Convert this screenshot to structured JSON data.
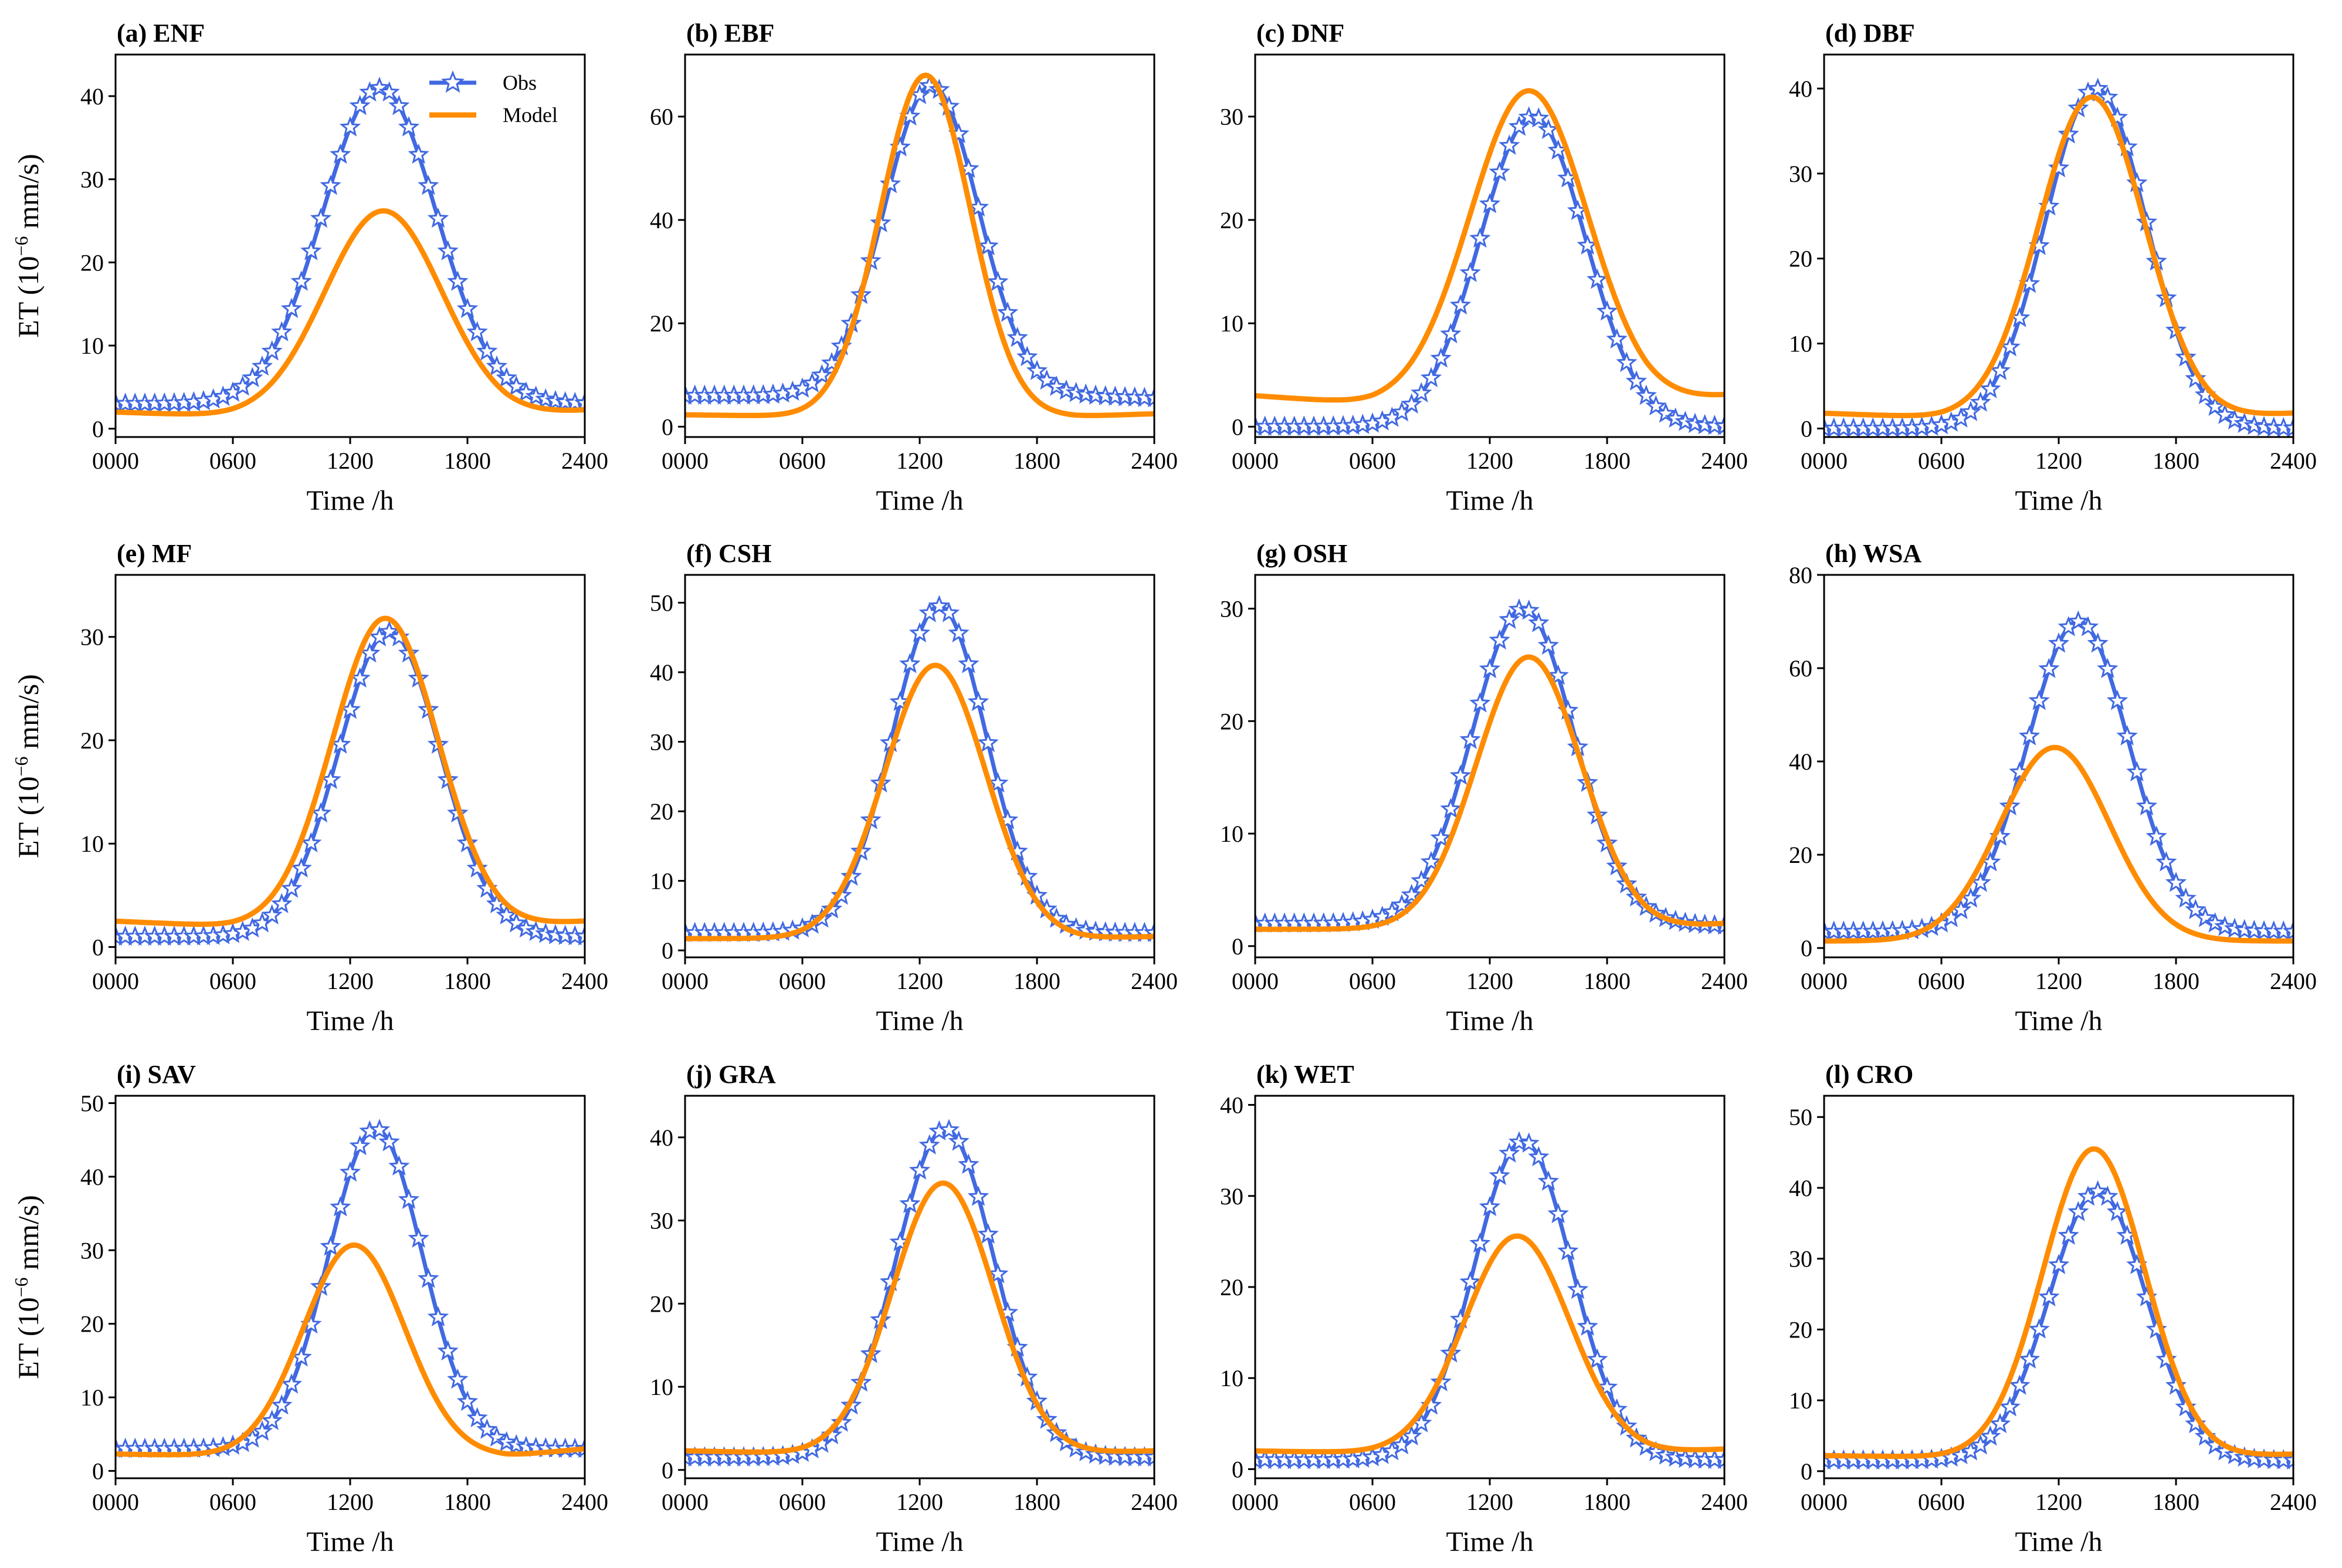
{
  "colors": {
    "obs": "#4169e1",
    "model": "#ff8c00"
  },
  "legend": {
    "obs": "Obs",
    "model": "Model"
  },
  "xlabel": "Time /h",
  "ylabel_prefix": "ET (10",
  "ylabel_exponent": "−6",
  "ylabel_suffix": " mm/s)",
  "chart_data": [
    {
      "type": "line",
      "title": "(a) ENF",
      "ylim": [
        -1,
        45
      ],
      "yticks": [
        0,
        10,
        20,
        30,
        40
      ],
      "xlim": [
        0,
        2400
      ],
      "xticks": [
        "0000",
        "0600",
        "1200",
        "1800",
        "2400"
      ],
      "series": [
        {
          "name": "Obs",
          "base": 3,
          "peak": 41,
          "peakHour": 13.5,
          "width": 2.9,
          "tailStart": 3,
          "tailEnd": 3
        },
        {
          "name": "Model",
          "base": 1.5,
          "peak": 26.2,
          "peakHour": 13.7,
          "width": 3.0,
          "tailStart": 2,
          "tailEnd": 2.2
        }
      ]
    },
    {
      "type": "line",
      "title": "(b) EBF",
      "ylim": [
        -2,
        72
      ],
      "yticks": [
        0,
        20,
        40,
        60
      ],
      "xlim": [
        0,
        2400
      ],
      "xticks": [
        "0000",
        "0600",
        "1200",
        "1800",
        "2400"
      ],
      "series": [
        {
          "name": "Obs",
          "base": 6,
          "peak": 66,
          "peakHour": 12.6,
          "width": 2.4,
          "tailStart": 6,
          "tailEnd": 5.5
        },
        {
          "name": "Model",
          "base": 2,
          "peak": 68,
          "peakHour": 12.3,
          "width": 2.3,
          "tailStart": 2.3,
          "tailEnd": 2.5
        }
      ]
    },
    {
      "type": "line",
      "title": "(c) DNF",
      "ylim": [
        -1,
        36
      ],
      "yticks": [
        0,
        10,
        20,
        30
      ],
      "xlim": [
        0,
        2400
      ],
      "xticks": [
        "0000",
        "0600",
        "1200",
        "1800",
        "2400"
      ],
      "series": [
        {
          "name": "Obs",
          "base": 0,
          "peak": 30,
          "peakHour": 14.2,
          "width": 2.7,
          "tailStart": 0,
          "tailEnd": 0
        },
        {
          "name": "Model",
          "base": 2.2,
          "peak": 32.5,
          "peakHour": 14.0,
          "width": 3.0,
          "tailStart": 3.0,
          "tailEnd": 3.0
        }
      ]
    },
    {
      "type": "line",
      "title": "(d) DBF",
      "ylim": [
        -1,
        44
      ],
      "yticks": [
        0,
        10,
        20,
        30,
        40
      ],
      "xlim": [
        0,
        2400
      ],
      "xticks": [
        "0000",
        "0600",
        "1200",
        "1800",
        "2400"
      ],
      "series": [
        {
          "name": "Obs",
          "base": 0,
          "peak": 40,
          "peakHour": 13.9,
          "width": 2.6,
          "tailStart": 0,
          "tailEnd": 0
        },
        {
          "name": "Model",
          "base": 1.3,
          "peak": 39,
          "peakHour": 13.7,
          "width": 2.7,
          "tailStart": 1.8,
          "tailEnd": 1.8
        }
      ]
    },
    {
      "type": "line",
      "title": "(e) MF",
      "ylim": [
        -1,
        36
      ],
      "yticks": [
        0,
        10,
        20,
        30
      ],
      "xlim": [
        0,
        2400
      ],
      "xticks": [
        "0000",
        "0600",
        "1200",
        "1800",
        "2400"
      ],
      "series": [
        {
          "name": "Obs",
          "base": 1,
          "peak": 30.5,
          "peakHour": 14.0,
          "width": 2.6,
          "tailStart": 1,
          "tailEnd": 1
        },
        {
          "name": "Model",
          "base": 2,
          "peak": 31.8,
          "peakHour": 13.8,
          "width": 2.7,
          "tailStart": 2.5,
          "tailEnd": 2.5
        }
      ]
    },
    {
      "type": "line",
      "title": "(f) CSH",
      "ylim": [
        -1,
        54
      ],
      "yticks": [
        0,
        10,
        20,
        30,
        40,
        50
      ],
      "xlim": [
        0,
        2400
      ],
      "xticks": [
        "0000",
        "0600",
        "1200",
        "1800",
        "2400"
      ],
      "series": [
        {
          "name": "Obs",
          "base": 2.5,
          "peak": 49.5,
          "peakHour": 13.0,
          "width": 2.4,
          "tailStart": 2.5,
          "tailEnd": 2.5
        },
        {
          "name": "Model",
          "base": 1.7,
          "peak": 41,
          "peakHour": 12.8,
          "width": 2.6,
          "tailStart": 1.7,
          "tailEnd": 2.0
        }
      ]
    },
    {
      "type": "line",
      "title": "(g) OSH",
      "ylim": [
        -1,
        33
      ],
      "yticks": [
        0,
        10,
        20,
        30
      ],
      "xlim": [
        0,
        2400
      ],
      "xticks": [
        "0000",
        "0600",
        "1200",
        "1800",
        "2400"
      ],
      "series": [
        {
          "name": "Obs",
          "base": 2,
          "peak": 30,
          "peakHour": 13.7,
          "width": 2.6,
          "tailStart": 2,
          "tailEnd": 1.8
        },
        {
          "name": "Model",
          "base": 1.5,
          "peak": 25.7,
          "peakHour": 14.0,
          "width": 2.7,
          "tailStart": 1.5,
          "tailEnd": 2.0
        }
      ]
    },
    {
      "type": "line",
      "title": "(h) WSA",
      "ylim": [
        -2,
        80
      ],
      "yticks": [
        0,
        20,
        40,
        60,
        80
      ],
      "xlim": [
        0,
        2400
      ],
      "xticks": [
        "0000",
        "0600",
        "1200",
        "1800",
        "2400"
      ],
      "series": [
        {
          "name": "Obs",
          "base": 3.5,
          "peak": 70,
          "peakHour": 13.0,
          "width": 2.6,
          "tailStart": 3.5,
          "tailEnd": 3.5
        },
        {
          "name": "Model",
          "base": 1.5,
          "peak": 43,
          "peakHour": 11.8,
          "width": 2.8,
          "tailStart": 1.5,
          "tailEnd": 1.5
        }
      ]
    },
    {
      "type": "line",
      "title": "(i) SAV",
      "ylim": [
        -1,
        51
      ],
      "yticks": [
        0,
        10,
        20,
        30,
        40,
        50
      ],
      "xlim": [
        0,
        2400
      ],
      "xticks": [
        "0000",
        "0600",
        "1200",
        "1800",
        "2400"
      ],
      "series": [
        {
          "name": "Obs",
          "base": 3,
          "peak": 46.5,
          "peakHour": 13.3,
          "width": 2.4,
          "tailStart": 3,
          "tailEnd": 3
        },
        {
          "name": "Model",
          "base": 2,
          "peak": 30.7,
          "peakHour": 12.2,
          "width": 2.6,
          "tailStart": 2.3,
          "tailEnd": 3
        }
      ]
    },
    {
      "type": "line",
      "title": "(j) GRA",
      "ylim": [
        -1,
        45
      ],
      "yticks": [
        0,
        10,
        20,
        30,
        40
      ],
      "xlim": [
        0,
        2400
      ],
      "xticks": [
        "0000",
        "0600",
        "1200",
        "1800",
        "2400"
      ],
      "series": [
        {
          "name": "Obs",
          "base": 1.5,
          "peak": 41,
          "peakHour": 13.3,
          "width": 2.5,
          "tailStart": 1.5,
          "tailEnd": 1.5
        },
        {
          "name": "Model",
          "base": 2,
          "peak": 34.5,
          "peakHour": 13.2,
          "width": 2.6,
          "tailStart": 2.3,
          "tailEnd": 2.3
        }
      ]
    },
    {
      "type": "line",
      "title": "(k) WET",
      "ylim": [
        -1,
        41
      ],
      "yticks": [
        0,
        10,
        20,
        30,
        40
      ],
      "xlim": [
        0,
        2400
      ],
      "xticks": [
        "0000",
        "0600",
        "1200",
        "1800",
        "2400"
      ],
      "series": [
        {
          "name": "Obs",
          "base": 1,
          "peak": 36,
          "peakHour": 13.7,
          "width": 2.5,
          "tailStart": 1,
          "tailEnd": 1
        },
        {
          "name": "Model",
          "base": 1.8,
          "peak": 25.6,
          "peakHour": 13.4,
          "width": 2.7,
          "tailStart": 2.0,
          "tailEnd": 2.2
        }
      ]
    },
    {
      "type": "line",
      "title": "(l) CRO",
      "ylim": [
        -1,
        53
      ],
      "yticks": [
        0,
        10,
        20,
        30,
        40,
        50
      ],
      "xlim": [
        0,
        2400
      ],
      "xticks": [
        "0000",
        "0600",
        "1200",
        "1800",
        "2400"
      ],
      "series": [
        {
          "name": "Obs",
          "base": 1.5,
          "peak": 39.5,
          "peakHour": 14.0,
          "width": 2.5,
          "tailStart": 1.5,
          "tailEnd": 1.5
        },
        {
          "name": "Model",
          "base": 2,
          "peak": 45.5,
          "peakHour": 13.8,
          "width": 2.6,
          "tailStart": 2.2,
          "tailEnd": 2.4
        }
      ]
    }
  ]
}
